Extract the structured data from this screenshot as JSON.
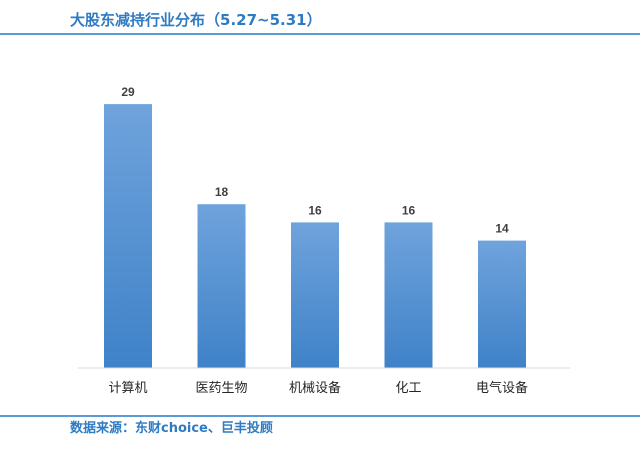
{
  "header": {
    "title": "大股东减持行业分布（5.27~5.31）"
  },
  "footer": {
    "source": "数据来源：东财choice、巨丰投顾"
  },
  "colors": {
    "accent": "#2e7bc4",
    "rule": "#5b9bd5",
    "bar_top": "#6fa3dc",
    "bar_bottom": "#3f82c8"
  },
  "chart_data": {
    "type": "bar",
    "title": "大股东减持行业分布（5.27~5.31）",
    "categories": [
      "计算机",
      "医药生物",
      "机械设备",
      "化工",
      "电气设备"
    ],
    "values": [
      29,
      18,
      16,
      16,
      14
    ],
    "data_labels": true,
    "ylim": [
      0,
      30
    ],
    "grid": false,
    "legend": "none"
  }
}
